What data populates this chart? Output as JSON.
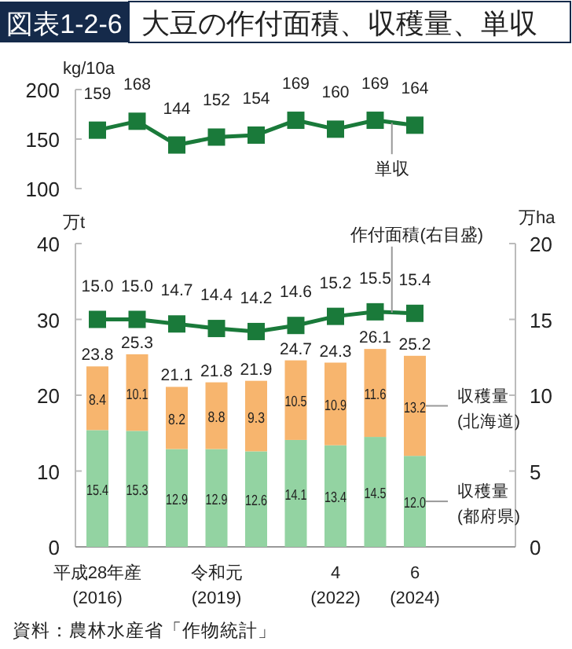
{
  "chart_data": [
    {
      "type": "line",
      "title": "大豆の作付面積、収穫量、単収",
      "subtitle": "図表1-2-6",
      "ylabel": "kg/10a",
      "categories": [
        null,
        null,
        null,
        null,
        null,
        null,
        null,
        null,
        null
      ],
      "series": [
        {
          "name": "単収",
          "color": "#1a7a3a",
          "values": [
            159,
            168,
            144,
            152,
            154,
            169,
            160,
            169,
            164
          ]
        }
      ],
      "ylim": [
        100,
        200
      ],
      "yticks": [
        100,
        150,
        200
      ],
      "marker": "square",
      "data_labels": true,
      "tick_labels": "y"
    },
    {
      "type": "bar",
      "stacked": true,
      "ylabel": "万t",
      "y2label": "万ha",
      "categories": [
        "平成28年産\n(2016)",
        null,
        null,
        "令和元\n(2019)",
        null,
        null,
        "4\n(2022)",
        null,
        "6\n(2024)"
      ],
      "series": [
        {
          "name": "収穫量\n(都府県)",
          "color": "#93d3a2",
          "values": [
            15.4,
            15.3,
            12.9,
            12.9,
            12.6,
            14.1,
            13.4,
            14.5,
            12.0
          ],
          "value_labels": [
            "15.4",
            "15.3",
            "12.9",
            "12.9",
            "12.6",
            "14.1",
            "13.4",
            "14.5",
            "12.0"
          ]
        },
        {
          "name": "収穫量\n(北海道)",
          "color": "#f7b56e",
          "values": [
            8.4,
            10.1,
            8.2,
            8.8,
            9.3,
            10.5,
            10.9,
            11.6,
            13.2
          ],
          "value_labels": [
            "8.4",
            "10.1",
            "8.2",
            "8.8",
            "9.3",
            "10.5",
            "10.9",
            "11.6",
            "13.2"
          ]
        },
        {
          "name": "作付面積(右目盛)",
          "type": "line",
          "axis": "y2",
          "color": "#1a7a3a",
          "values": [
            15.0,
            15.0,
            14.7,
            14.4,
            14.2,
            14.6,
            15.2,
            15.5,
            15.4
          ],
          "value_labels": [
            "15.0",
            "15.0",
            "14.7",
            "14.4",
            "14.2",
            "14.6",
            "15.2",
            "15.5",
            "15.4"
          ]
        }
      ],
      "totals": [
        "23.8",
        "25.3",
        "21.1",
        "21.8",
        "21.9",
        "24.7",
        "24.3",
        "26.1",
        "25.2"
      ],
      "ylim": [
        0,
        40
      ],
      "yticks": [
        0,
        10,
        20,
        30,
        40
      ],
      "y2lim": [
        0,
        20
      ],
      "y2ticks": [
        0,
        5,
        10,
        15,
        20
      ],
      "marker": "square",
      "annotations": [
        "資料：農林水産省「作物統計」"
      ]
    }
  ]
}
